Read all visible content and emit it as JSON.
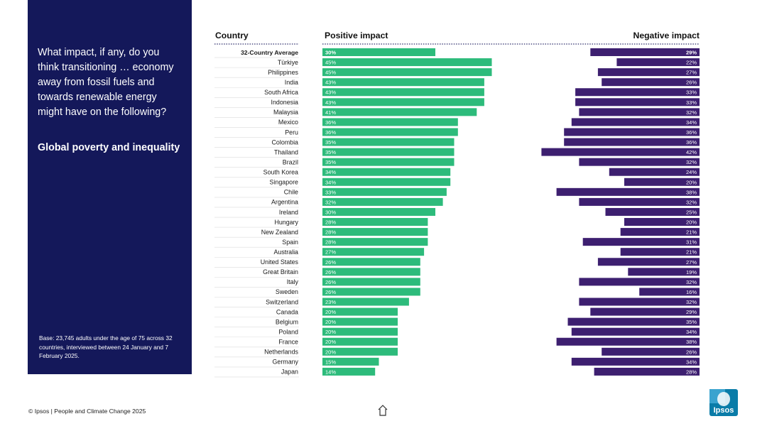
{
  "sidebar": {
    "question": "What impact, if any, do you think transitioning … economy away from fossil fuels and towards renewable energy might have on the following?",
    "topic": "Global poverty and inequality",
    "base_note": "Base: 23,745 adults under the age of 75 across 32 countries, interviewed between 24 January and 7 February 2025."
  },
  "footer": {
    "text": "© Ipsos | People and Climate Change 2025",
    "home_icon": "home-icon",
    "logo_text": "Ipsos"
  },
  "colors": {
    "panel": "#14185a",
    "positive": "#2dbb7b",
    "negative": "#3d1f70",
    "logo": "#0a7ca8"
  },
  "chart_data": {
    "type": "bar",
    "title": "Global poverty and inequality",
    "column_headers": {
      "country": "Country",
      "positive": "Positive impact",
      "negative": "Negative impact"
    },
    "categories": [
      "32-Country Average",
      "Türkiye",
      "Philippines",
      "India",
      "South Africa",
      "Indonesia",
      "Malaysia",
      "Mexico",
      "Peru",
      "Colombia",
      "Thailand",
      "Brazil",
      "South Korea",
      "Singapore",
      "Chile",
      "Argentina",
      "Ireland",
      "Hungary",
      "New Zealand",
      "Spain",
      "Australia",
      "United States",
      "Great Britain",
      "Italy",
      "Sweden",
      "Switzerland",
      "Canada",
      "Belgium",
      "Poland",
      "France",
      "Netherlands",
      "Germany",
      "Japan"
    ],
    "series": [
      {
        "name": "Positive impact",
        "values": [
          30,
          45,
          45,
          43,
          43,
          43,
          41,
          36,
          36,
          35,
          35,
          35,
          34,
          34,
          33,
          32,
          30,
          28,
          28,
          28,
          27,
          26,
          26,
          26,
          26,
          23,
          20,
          20,
          20,
          20,
          20,
          15,
          14
        ]
      },
      {
        "name": "Negative impact",
        "values": [
          29,
          22,
          27,
          26,
          33,
          33,
          32,
          34,
          36,
          36,
          42,
          32,
          24,
          20,
          38,
          32,
          25,
          20,
          21,
          31,
          21,
          27,
          19,
          32,
          16,
          32,
          29,
          35,
          34,
          38,
          26,
          34,
          28
        ]
      }
    ],
    "value_suffix": "%",
    "xlim": [
      0,
      100
    ]
  }
}
